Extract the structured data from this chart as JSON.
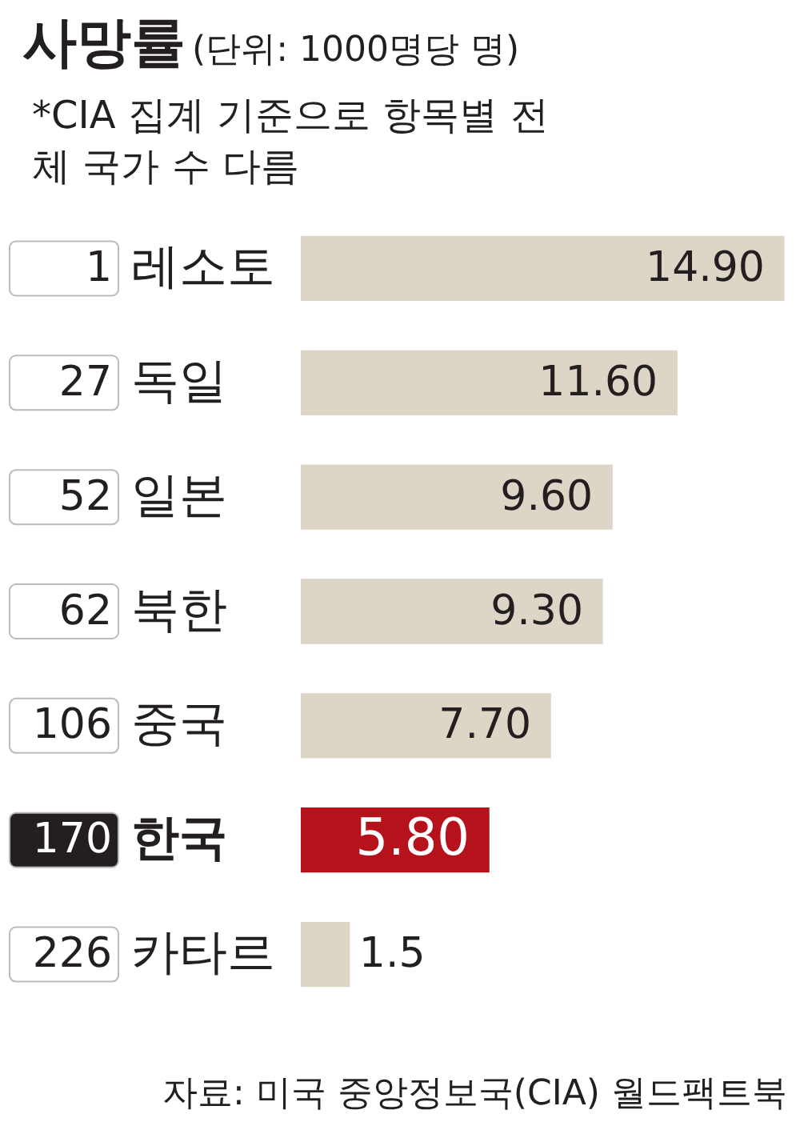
{
  "chart_data": {
    "type": "bar",
    "orientation": "horizontal",
    "title": "사망률",
    "subtitle": "(단위: 1000명당 명)",
    "categories": [
      "레소토",
      "독일",
      "일본",
      "북한",
      "중국",
      "한국",
      "카타르"
    ],
    "values": [
      14.9,
      11.6,
      9.6,
      9.3,
      7.7,
      5.8,
      1.5
    ],
    "value_labels": [
      "14.90",
      "11.60",
      "9.60",
      "9.30",
      "7.70",
      "5.80",
      "1.5"
    ],
    "colors": [
      "#ddd5c5",
      "#ddd5c5",
      "#ddd5c5",
      "#ddd5c5",
      "#ddd5c5",
      "#b5121b",
      "#ddd5c5"
    ],
    "xlim": [
      0,
      15
    ],
    "tick_labels": false,
    "annotations": [
      "*CIA 집계 기준으로 항목별 전체 국가 수 다름",
      "자료: 미국 중앙정보국(CIA) 월드팩트북",
      "1",
      "27",
      "52",
      "62",
      "106",
      "170",
      "226"
    ]
  }
}
